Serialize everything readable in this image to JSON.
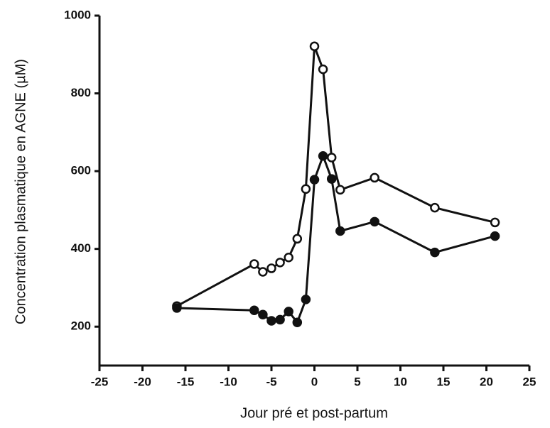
{
  "chart_data": {
    "type": "line",
    "x_label": "Jour pré et post-partum",
    "y_label": "Concentration plasmatique en AGNE (µM)",
    "x": [
      -16,
      -7,
      -6,
      -5,
      -4,
      -3,
      -2,
      -1,
      0,
      1,
      2,
      3,
      7,
      14,
      21
    ],
    "series": [
      {
        "color": "#ffffff",
        "values": [
          253,
          361,
          341,
          350,
          365,
          378,
          426,
          554,
          921,
          862,
          635,
          552,
          583,
          506,
          468
        ]
      },
      {
        "color": "#111111",
        "values": [
          248,
          242,
          231,
          215,
          218,
          239,
          211,
          270,
          578,
          639,
          580,
          446,
          470,
          391,
          433
        ]
      }
    ],
    "xlim": [
      -25,
      25
    ],
    "xticks": [
      -25,
      -20,
      -15,
      -10,
      -5,
      0,
      5,
      10,
      15,
      20,
      25
    ],
    "ylim": [
      100,
      1000
    ],
    "yticks": [
      200,
      400,
      600,
      800,
      1000
    ],
    "grid": false
  }
}
